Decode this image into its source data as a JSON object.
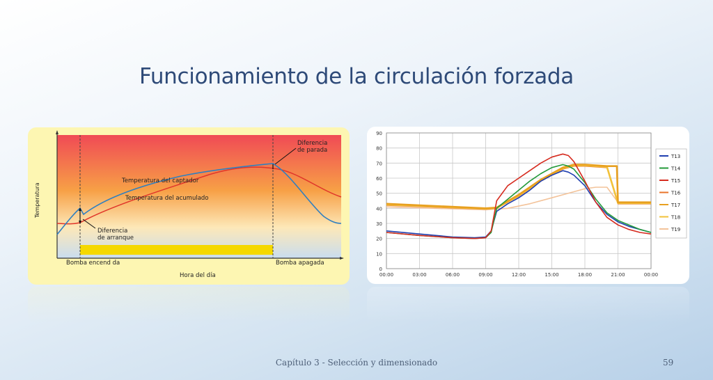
{
  "slide": {
    "title": "Funcionamiento de la circulación forzada",
    "footer": "Capítulo 3 - Selección y dimensionado",
    "page_number": "59"
  },
  "chart_data": [
    {
      "type": "line",
      "title": "",
      "xlabel": "Hora del día",
      "ylabel": "Temperatura",
      "series": [
        {
          "name": "Temperatura del captador",
          "color": "#2f7fc0"
        },
        {
          "name": "Temperatura del acumulado",
          "color": "#e0352a"
        }
      ],
      "annotations": [
        {
          "text": "Diferencia de parada"
        },
        {
          "text": "Diferencia de arranque"
        },
        {
          "text": "Bomba encendida"
        },
        {
          "text": "Bomba apagada"
        }
      ],
      "labels": {
        "captador": "Temperatura del captador",
        "acumulado": "Temperatura del acumulado",
        "parada_1": "Diferencia",
        "parada_2": "de parada",
        "arranque_1": "Diferencia",
        "arranque_2": "de arranque",
        "on": "Bomba encend da",
        "off": "Bomba apagada"
      },
      "pump_on_period": {
        "start": "Bomba encendida",
        "end": "Bomba apagada",
        "color": "#f5d800"
      }
    },
    {
      "type": "line",
      "title": "",
      "ylim": [
        0,
        90
      ],
      "yticks": [
        "0",
        "10",
        "20",
        "30",
        "40",
        "50",
        "60",
        "70",
        "80",
        "90"
      ],
      "xticks": [
        "00:00",
        "03:00",
        "06:00",
        "09:00",
        "12:00",
        "15:00",
        "18:00",
        "21:00",
        "00:00"
      ],
      "grid": true,
      "legend": "right",
      "series": [
        {
          "name": "T13",
          "color": "#1f3fb0",
          "x": [
            0,
            3,
            6,
            8,
            9,
            9.5,
            10,
            11,
            12,
            13,
            14,
            15,
            16,
            16.5,
            17,
            18,
            19,
            20,
            21,
            22,
            23,
            24
          ],
          "y": [
            25,
            23,
            21,
            20.5,
            21,
            25,
            38,
            43,
            47,
            52,
            58,
            62,
            65,
            64,
            62,
            55,
            44,
            36,
            31,
            28,
            26,
            24
          ]
        },
        {
          "name": "T14",
          "color": "#239a3a",
          "x": [
            0,
            3,
            6,
            8,
            9,
            9.5,
            10,
            11,
            12,
            13,
            14,
            15,
            16,
            16.5,
            17,
            18,
            19,
            20,
            21,
            22,
            23,
            24
          ],
          "y": [
            24,
            22,
            20.5,
            20,
            20.5,
            24,
            40,
            46,
            52,
            58,
            63,
            67,
            69,
            68,
            66,
            57,
            46,
            37,
            32,
            29,
            26,
            24
          ]
        },
        {
          "name": "T15",
          "color": "#d62b1f",
          "x": [
            0,
            3,
            6,
            8,
            9,
            9.5,
            10,
            11,
            12,
            13,
            14,
            15,
            16,
            16.5,
            17,
            18,
            19,
            20,
            21,
            22,
            23,
            24
          ],
          "y": [
            24,
            22,
            20.5,
            20,
            20.5,
            25,
            45,
            55,
            60,
            65,
            70,
            74,
            76,
            75,
            71,
            58,
            44,
            34,
            29,
            26,
            24,
            23
          ]
        },
        {
          "name": "T16",
          "color": "#e8742a",
          "x": [
            0,
            9,
            10,
            12,
            14,
            16,
            17,
            18,
            20,
            21,
            24
          ],
          "y": [
            42,
            39.5,
            40,
            48,
            58,
            66,
            68,
            68,
            67,
            43,
            43
          ]
        },
        {
          "name": "T17",
          "color": "#e8a020",
          "x": [
            0,
            9,
            10,
            12,
            14,
            16,
            17,
            18,
            20,
            20.9,
            21,
            24
          ],
          "y": [
            43,
            40,
            40.5,
            49,
            59,
            67,
            69,
            69,
            68,
            68,
            44,
            44
          ]
        },
        {
          "name": "T18",
          "color": "#f2c23a",
          "x": [
            0,
            9,
            10,
            12,
            14,
            16,
            17,
            18,
            20,
            21,
            24
          ],
          "y": [
            42.5,
            39.8,
            40.2,
            48.5,
            58.5,
            66.5,
            68.5,
            68.5,
            67.5,
            43.5,
            43.5
          ]
        },
        {
          "name": "T19",
          "color": "#f3c39a",
          "x": [
            0,
            9,
            11,
            13,
            15,
            17,
            18,
            19,
            20,
            21,
            24
          ],
          "y": [
            41,
            39,
            40,
            43,
            47,
            51,
            53,
            54,
            54,
            44,
            43
          ]
        }
      ]
    }
  ]
}
